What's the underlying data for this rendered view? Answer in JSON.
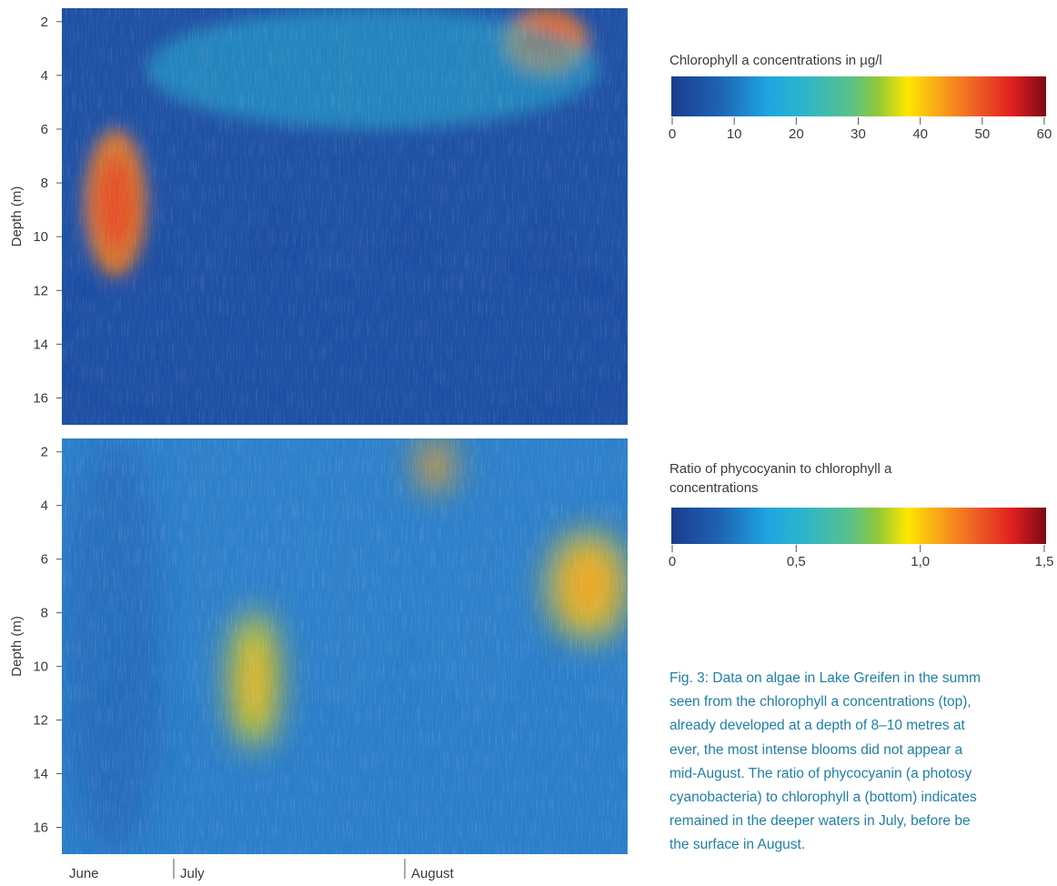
{
  "chart_data": [
    {
      "type": "heatmap",
      "title": "",
      "xlabel": "",
      "ylabel": "Depth (m)",
      "yticks": [
        "2",
        "4",
        "6",
        "8",
        "10",
        "12",
        "14",
        "16"
      ],
      "ylim": [
        17,
        1.5
      ],
      "x_month_labels": [
        "June",
        "July",
        "August"
      ],
      "colorbar": {
        "title": "Chlorophyll a concentrations in  µg/l",
        "ticks": [
          "0",
          "10",
          "20",
          "30",
          "40",
          "50",
          "60"
        ],
        "range": [
          0,
          60
        ]
      },
      "features": [
        {
          "period": "early June",
          "depth_range_m": [
            6,
            11.5
          ],
          "value_max": 45
        },
        {
          "period": "mid-August",
          "depth_range_m": [
            1.5,
            4
          ],
          "value_max": 45
        },
        {
          "period": "July–August",
          "depth_range_m": [
            1.5,
            6
          ],
          "value_typical": 15
        },
        {
          "period": "whole summer",
          "depth_range_m": [
            11,
            17
          ],
          "value_typical": 4
        }
      ]
    },
    {
      "type": "heatmap",
      "title": "",
      "xlabel": "",
      "ylabel": "Depth (m)",
      "yticks": [
        "2",
        "4",
        "6",
        "8",
        "10",
        "12",
        "14",
        "16"
      ],
      "ylim": [
        17,
        1.5
      ],
      "x_month_labels": [
        "June",
        "July",
        "August"
      ],
      "colorbar": {
        "title_lines": [
          "Ratio of phycocyanin to chlorophyll a",
          "concentrations"
        ],
        "ticks": [
          "0",
          "0,5",
          "1,0",
          "1,5"
        ],
        "range": [
          0,
          1.5
        ]
      },
      "features": [
        {
          "period": "July",
          "depth_range_m": [
            8,
            13
          ],
          "value_max": 0.9
        },
        {
          "period": "early August",
          "depth_range_m": [
            1.5,
            3.5
          ],
          "value_max": 1.0
        },
        {
          "period": "late August",
          "depth_range_m": [
            5,
            9
          ],
          "value_max": 0.95
        },
        {
          "period": "June",
          "depth_range_m": [
            1.5,
            17
          ],
          "value_typical": 0.15
        }
      ]
    }
  ],
  "caption_lines": [
    "Fig. 3: Data on algae in Lake Greifen in the summ",
    "seen from the chlorophyll a concentrations (top),",
    "already developed at a depth of 8–10 metres at",
    "ever, the most intense blooms did not appear a",
    "mid-August. The ratio of phycocyanin (a photosy",
    "cyanobacteria) to chlorophyll a (bottom) indicates",
    "remained in the deeper waters in July, before be",
    "the surface in August."
  ],
  "colors": {
    "text": "#3a3a3a",
    "caption": "#1f7fa6",
    "scale": [
      "#1b3d8f",
      "#1f5fb0",
      "#1ea6e0",
      "#2db6c8",
      "#5cc08a",
      "#8fc93a",
      "#ffe600",
      "#f7a11a",
      "#ee5a24",
      "#e02020",
      "#7a0a15"
    ]
  }
}
